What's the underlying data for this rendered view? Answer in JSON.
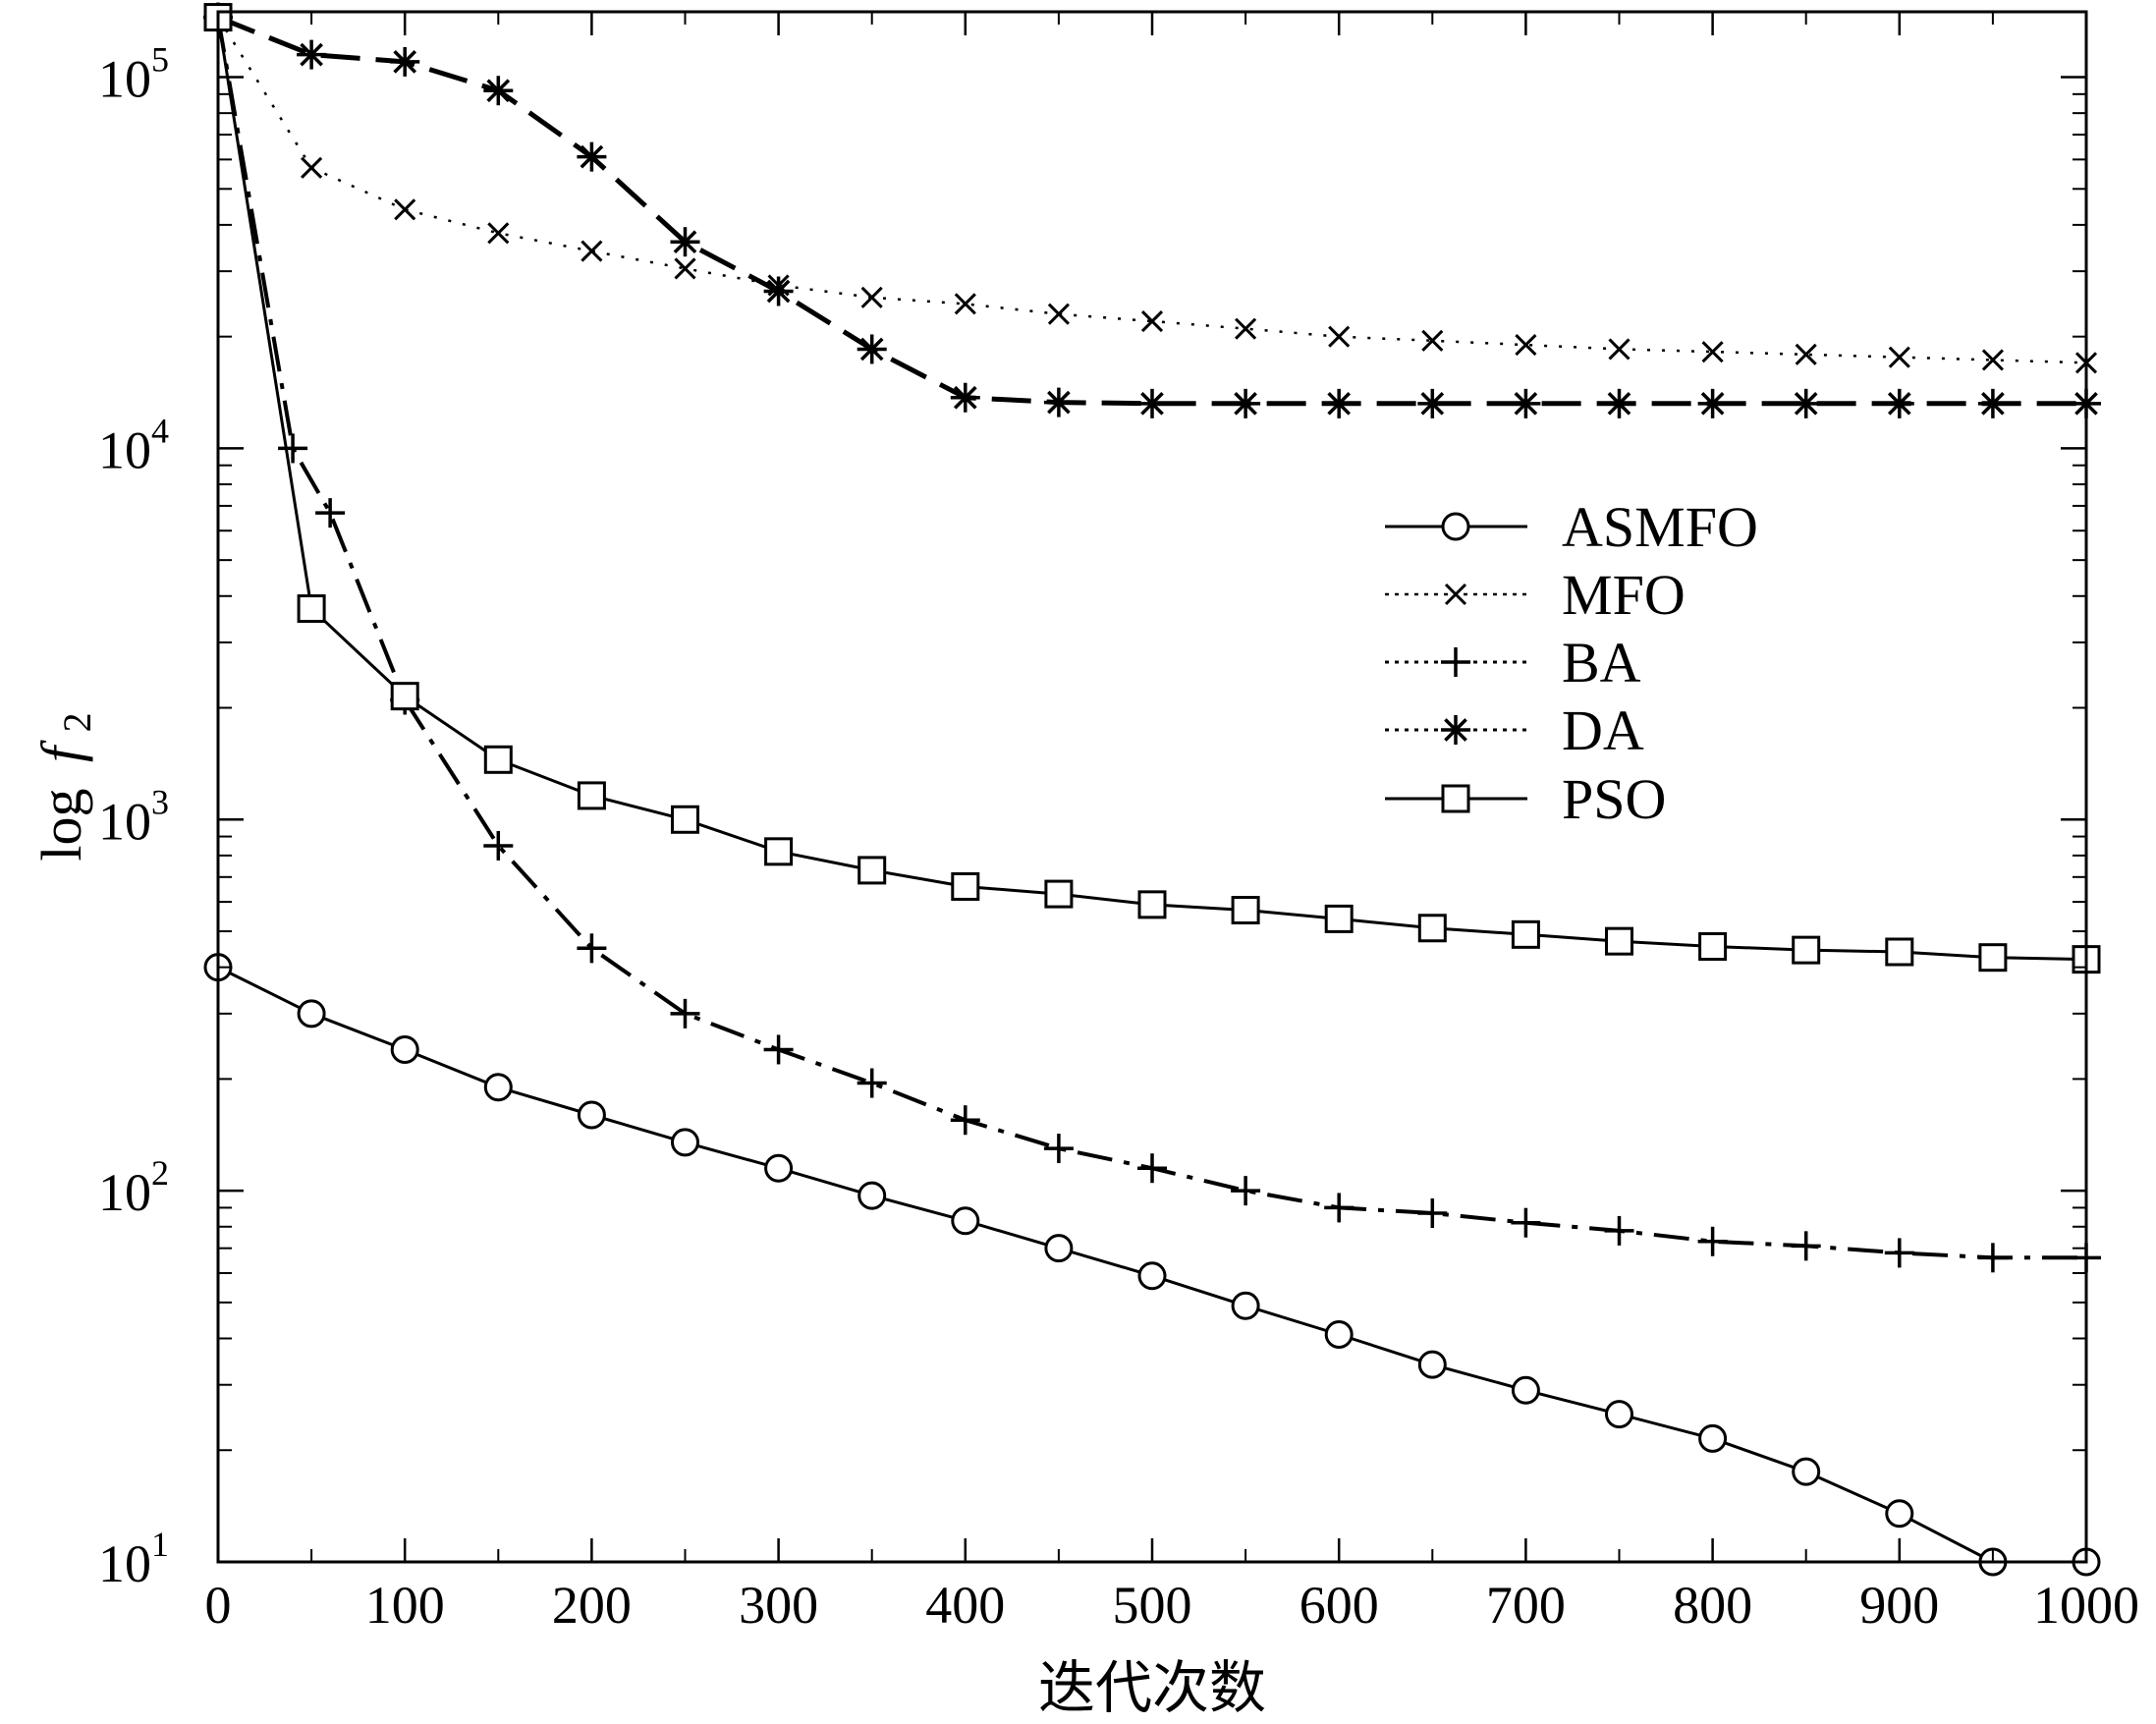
{
  "chart_data": {
    "type": "line",
    "xlabel": "迭代次数",
    "ylabel_prefix": "log",
    "ylabel_var": "f",
    "ylabel_sub": "2",
    "y_scale": "log",
    "xlim": [
      0,
      1000
    ],
    "ylim": [
      10,
      150000
    ],
    "grid": false,
    "legend_position": "center-right",
    "x_ticks": [
      0,
      100,
      200,
      300,
      400,
      500,
      600,
      700,
      800,
      900,
      1000
    ],
    "y_tick_labels": [
      {
        "value": 10,
        "base": "10",
        "exp": "1"
      },
      {
        "value": 100,
        "base": "10",
        "exp": "2"
      },
      {
        "value": 1000,
        "base": "10",
        "exp": "3"
      },
      {
        "value": 10000,
        "base": "10",
        "exp": "4"
      },
      {
        "value": 100000,
        "base": "10",
        "exp": "5"
      }
    ],
    "series": [
      {
        "name": "ASMFO",
        "marker": "circle",
        "dash": "solid",
        "x": [
          0,
          50,
          100,
          150,
          200,
          250,
          300,
          350,
          400,
          450,
          500,
          550,
          600,
          650,
          700,
          750,
          800,
          850,
          900,
          950,
          1000
        ],
        "y": [
          400,
          300,
          240,
          190,
          160,
          135,
          115,
          97,
          83,
          70,
          59,
          49,
          41,
          34,
          29,
          25,
          21.5,
          17.5,
          13.5,
          10,
          10
        ]
      },
      {
        "name": "MFO",
        "marker": "x",
        "dash": "dotted",
        "x": [
          0,
          50,
          100,
          150,
          200,
          250,
          300,
          350,
          400,
          450,
          500,
          550,
          600,
          650,
          700,
          750,
          800,
          850,
          900,
          950,
          1000
        ],
        "y": [
          145000,
          57000,
          44000,
          38000,
          34000,
          30500,
          27500,
          25500,
          24500,
          23000,
          22000,
          21000,
          20000,
          19500,
          19000,
          18500,
          18200,
          17900,
          17600,
          17300,
          17000
        ]
      },
      {
        "name": "BA",
        "marker": "plus",
        "dash": "dashdot",
        "x": [
          0,
          40,
          60,
          100,
          150,
          200,
          250,
          300,
          350,
          400,
          450,
          500,
          550,
          600,
          650,
          700,
          750,
          800,
          850,
          900,
          950,
          1000
        ],
        "y": [
          145000,
          10000,
          6700,
          2100,
          850,
          450,
          300,
          240,
          195,
          155,
          130,
          115,
          100,
          90,
          87,
          82,
          78,
          73,
          71,
          68,
          66,
          66
        ]
      },
      {
        "name": "DA",
        "marker": "asterisk",
        "dash": "longdash",
        "x": [
          0,
          50,
          100,
          150,
          200,
          250,
          300,
          350,
          400,
          450,
          500,
          550,
          600,
          650,
          700,
          750,
          800,
          850,
          900,
          950,
          1000
        ],
        "y": [
          145000,
          115000,
          110000,
          92000,
          61000,
          36000,
          26500,
          18500,
          13700,
          13300,
          13200,
          13200,
          13200,
          13200,
          13200,
          13200,
          13200,
          13200,
          13200,
          13200,
          13200
        ]
      },
      {
        "name": "PSO",
        "marker": "square",
        "dash": "solid",
        "x": [
          0,
          50,
          100,
          150,
          200,
          250,
          300,
          350,
          400,
          450,
          500,
          550,
          600,
          650,
          700,
          750,
          800,
          850,
          900,
          950,
          1000
        ],
        "y": [
          145000,
          3700,
          2150,
          1450,
          1160,
          1000,
          820,
          730,
          660,
          630,
          590,
          570,
          540,
          510,
          490,
          470,
          455,
          445,
          440,
          425,
          420
        ]
      }
    ]
  }
}
